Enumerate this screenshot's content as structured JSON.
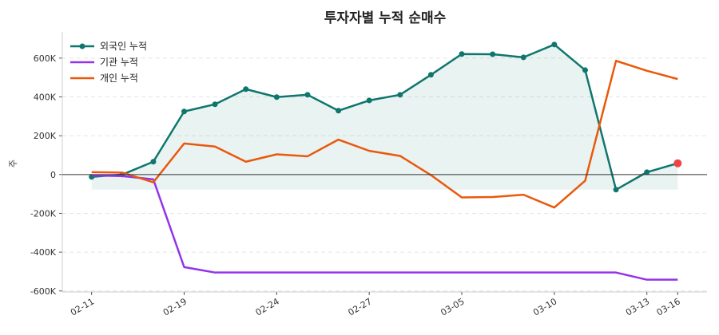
{
  "chart_data": {
    "type": "line",
    "title": "투자자별 누적 순매수",
    "xlabel": "",
    "ylabel": "주",
    "x": [
      "02-11",
      "02-12",
      "02-13",
      "02-19",
      "02-20",
      "02-23",
      "02-24",
      "02-25",
      "02-26",
      "02-27",
      "03-03",
      "03-04",
      "03-05",
      "03-06",
      "03-09",
      "03-10",
      "03-11",
      "03-12",
      "03-13",
      "03-16"
    ],
    "xticks": [
      "02-11",
      "02-19",
      "02-24",
      "02-27",
      "03-05",
      "03-10",
      "03-13",
      "03-16"
    ],
    "yticks": [
      -600000,
      -400000,
      -200000,
      0,
      200000,
      400000,
      600000
    ],
    "ytick_labels": [
      "-600K",
      "-400K",
      "-200K",
      "0",
      "200K",
      "400K",
      "600K"
    ],
    "ylim": [
      -605000,
      735000
    ],
    "grid": "horizontal dashed",
    "legend_position": "top-left",
    "series": [
      {
        "name": "외국인 누적",
        "color": "#0f766e",
        "markers": true,
        "fill": true,
        "last_point_color": "#ef4444",
        "values": [
          -12000,
          0,
          66000,
          325000,
          362000,
          440000,
          399000,
          411000,
          329000,
          382000,
          411000,
          514000,
          621000,
          620000,
          604000,
          670000,
          538000,
          -78000,
          12000,
          58000
        ]
      },
      {
        "name": "기관 누적",
        "color": "#9333ea",
        "values": [
          -5000,
          -8000,
          -25000,
          -477000,
          -505000,
          -505000,
          -505000,
          -505000,
          -505000,
          -505000,
          -505000,
          -505000,
          -505000,
          -505000,
          -505000,
          -505000,
          -505000,
          -505000,
          -542000,
          -542000
        ]
      },
      {
        "name": "개인 누적",
        "color": "#ea580c",
        "values": [
          12000,
          10000,
          -40000,
          160000,
          144000,
          66000,
          104000,
          94000,
          180000,
          122000,
          96000,
          -3000,
          -118000,
          -116000,
          -104000,
          -170000,
          -32000,
          586000,
          535000,
          492000
        ]
      }
    ]
  }
}
